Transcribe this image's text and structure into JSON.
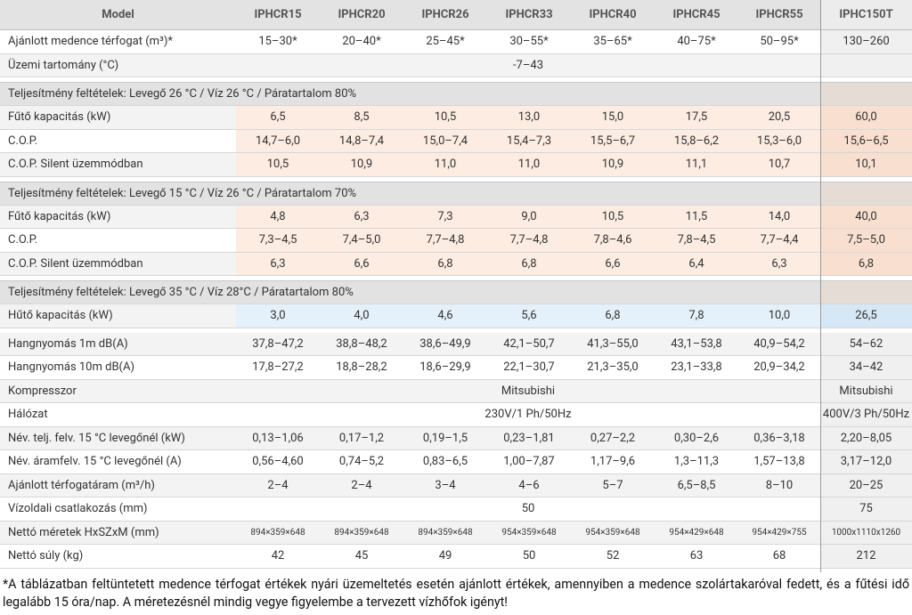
{
  "columns": [
    "Model",
    "IPHCR15",
    "IPHCR20",
    "IPHCR26",
    "IPHCR33",
    "IPHCR40",
    "IPHCR45",
    "IPHCR55",
    "IPHC150T"
  ],
  "top_rows": [
    {
      "label": "Ajánlott medence térfogat (m³)*",
      "cells": [
        "15–30*",
        "20–40*",
        "25–45*",
        "30–55*",
        "35–65*",
        "40–75*",
        "50–95*",
        "130–260"
      ]
    },
    {
      "label": "Üzemi tartomány (°C)",
      "cells": [
        "-7–43"
      ]
    }
  ],
  "blocks": [
    {
      "title": "Teljesítmény feltételek: Levegő 26 °C / Víz 26 °C / Páratartalom 80%",
      "rows": [
        {
          "label": "Fűtő kapacitás (kW)",
          "cells": [
            "6,5",
            "8,5",
            "10,5",
            "13,0",
            "15,0",
            "17,5",
            "20,5",
            "60,0"
          ]
        },
        {
          "label": "C.O.P.",
          "cells": [
            "14,7–6,0",
            "14,8–7,4",
            "15,0–7,4",
            "15,4–7,3",
            "15,5–6,7",
            "15,8–6,2",
            "15,3–6,0",
            "15,6–6,5"
          ]
        },
        {
          "label": "C.O.P. Silent üzemmódban",
          "cells": [
            "10,5",
            "10,9",
            "11,0",
            "11,0",
            "10,9",
            "11,1",
            "10,7",
            "10,1"
          ]
        }
      ]
    },
    {
      "title": "Teljesítmény feltételek: Levegő 15 °C / Víz 26 °C / Páratartalom 70%",
      "rows": [
        {
          "label": "Fűtő kapacitás (kW)",
          "cells": [
            "4,8",
            "6,3",
            "7,3",
            "9,0",
            "10,5",
            "11,5",
            "14,0",
            "40,0"
          ]
        },
        {
          "label": "C.O.P.",
          "cells": [
            "7,3–4,5",
            "7,4–5,0",
            "7,7–4,8",
            "7,7–4,8",
            "7,8–4,6",
            "7,8–4,5",
            "7,7–4,4",
            "7,5–5,0"
          ]
        },
        {
          "label": "C.O.P. Silent üzemmódban",
          "cells": [
            "6,3",
            "6,6",
            "6,8",
            "6,8",
            "6,6",
            "6,4",
            "6,3",
            "6,8"
          ]
        }
      ]
    },
    {
      "title": "Teljesítmény feltételek: Levegő 35 °C / Víz 28°C / Páratartalom 80%",
      "rows": [
        {
          "label": "Hűtő kapacitás (kW)",
          "cells": [
            "3,0",
            "4,0",
            "4,6",
            "5,6",
            "6,8",
            "7,8",
            "10,0",
            "26,5"
          ]
        }
      ]
    }
  ],
  "bottom_rows": [
    {
      "label": "Hangnyomás 1m dB(A)",
      "cells": [
        "37,8–47,2",
        "38,8–48,2",
        "38,6–49,9",
        "42,1–50,7",
        "41,3–55,0",
        "43,1–53,8",
        "40,9–54,2",
        "54–62"
      ]
    },
    {
      "label": "Hangnyomás 10m dB(A)",
      "cells": [
        "17,8–27,2",
        "18,8–28,2",
        "18,6–29,9",
        "22,1–30,7",
        "21,3–35,0",
        "23,1–33,8",
        "20,9–34,2",
        "34–42"
      ]
    },
    {
      "label": "Kompresszor",
      "cells": [
        "Mitsubishi",
        "Mitsubishi"
      ]
    },
    {
      "label": "Hálózat",
      "cells": [
        "230V/1 Ph/50Hz",
        "400V/3 Ph/50Hz"
      ]
    },
    {
      "label": "Név. telj. felv. 15 °C levegőnél (kW)",
      "cells": [
        "0,13–1,06",
        "0,17–1,2",
        "0,19–1,5",
        "0,23–1,81",
        "0,27–2,2",
        "0,30–2,6",
        "0,36–3,18",
        "2,20–8,05"
      ]
    },
    {
      "label": "Név. áramfelv. 15 °C levegőnél (A)",
      "cells": [
        "0,56–4,60",
        "0,74–5,2",
        "0,83–6,5",
        "1,00–7,87",
        "1,17–9,6",
        "1,3–11,3",
        "1,57–13,8",
        "3,17–12,0"
      ]
    },
    {
      "label": "Ajánlott térfogatáram (m³/h)",
      "cells": [
        "2–4",
        "2–4",
        "3–4",
        "4–6",
        "5–7",
        "6,5–8,5",
        "8–10",
        "20–25"
      ]
    },
    {
      "label": "Vízoldali csatlakozás (mm)",
      "cells": [
        "50",
        "75"
      ]
    },
    {
      "label": "Nettó méretek HxSZxM (mm)",
      "cells": [
        "894×359×648",
        "894×359×648",
        "894×359×648",
        "954×359×648",
        "954×359×648",
        "954×429×648",
        "954×429×755",
        "1000x1110x1260"
      ]
    },
    {
      "label": "Nettó súly (kg)",
      "cells": [
        "42",
        "45",
        "49",
        "50",
        "52",
        "63",
        "68",
        "212"
      ]
    }
  ],
  "footnote": "*A táblázatban feltüntetett medence térfogat értékek nyári üzemeltetés esetén ajánlott értékek, amennyiben a medence szolártakaróval fedett, és a fűtési idő legalább 15 óra/nap. A méretezésnél mindig vegye figyelembe a tervezett vízhőfok igényt!"
}
